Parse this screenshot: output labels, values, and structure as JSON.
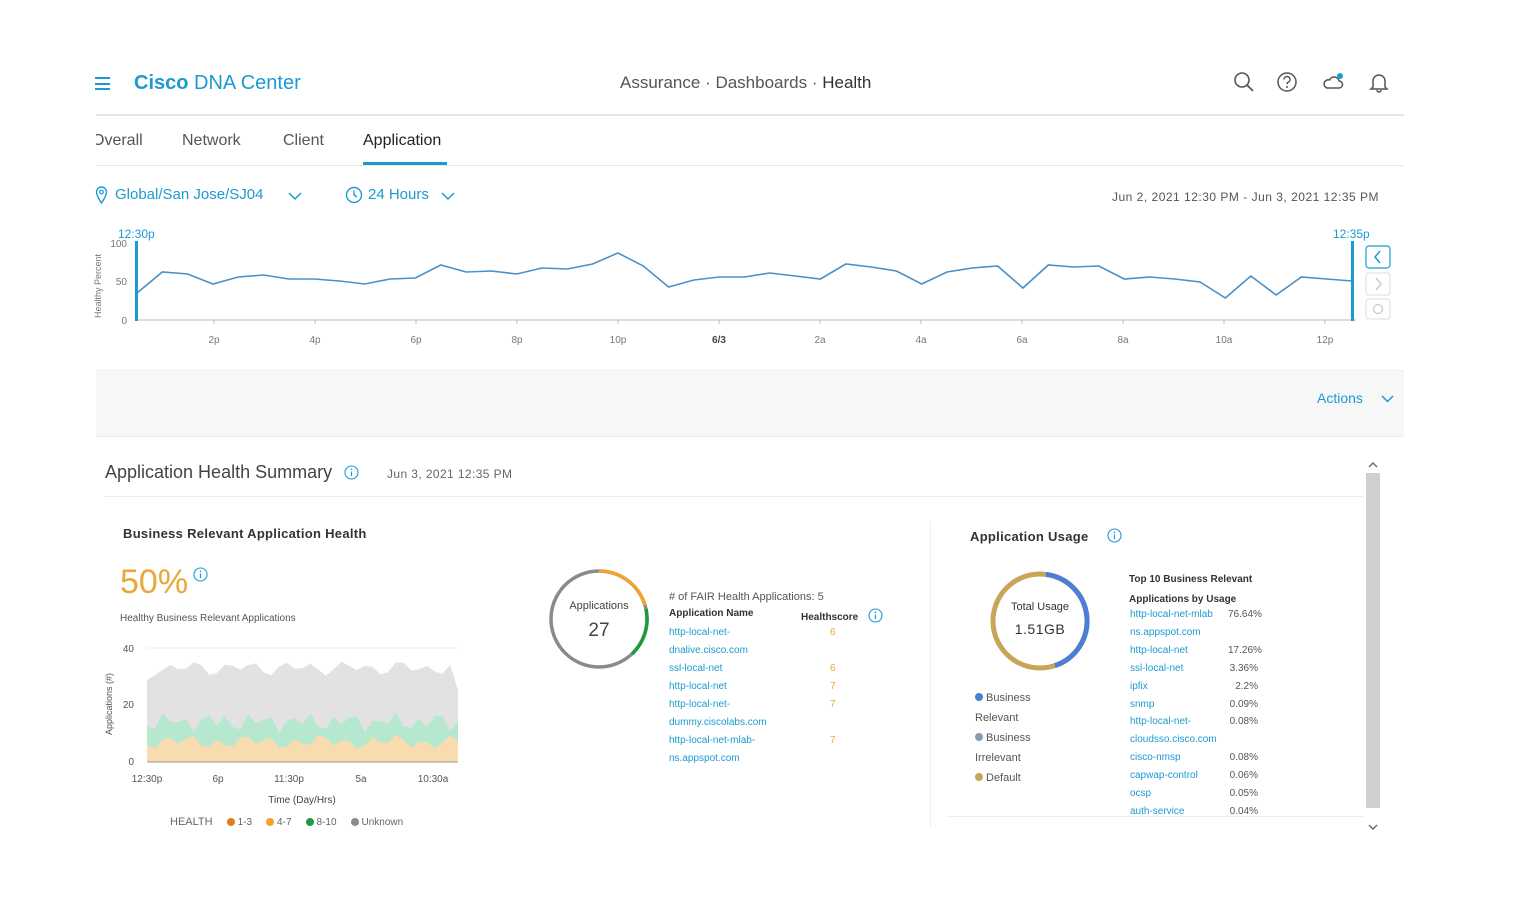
{
  "header": {
    "brand_bold": "Cisco",
    "brand_rest": "DNA Center",
    "breadcrumb": [
      "Assurance",
      "Dashboards",
      "Health"
    ],
    "icons": [
      "search-icon",
      "help-icon",
      "cloud-notification-icon",
      "bell-icon"
    ]
  },
  "tabs": [
    {
      "label": "Overall"
    },
    {
      "label": "Network"
    },
    {
      "label": "Client"
    },
    {
      "label": "Application",
      "active": true
    }
  ],
  "filters": {
    "location": "Global/San Jose/SJ04",
    "time_range": "24 Hours",
    "date_range": "Jun 2, 2021 12:30 PM - Jun 3, 2021 12:35 PM"
  },
  "timeline": {
    "start_label": "12:30p",
    "end_label": "12:35p",
    "ylabel": "Healthy Percent",
    "yticks": [
      "100",
      "50",
      "0"
    ],
    "xticks": [
      "2p",
      "4p",
      "6p",
      "8p",
      "10p",
      "6/3",
      "2a",
      "4a",
      "6a",
      "8a",
      "10a",
      "12p"
    ]
  },
  "actions": {
    "label": "Actions"
  },
  "summary": {
    "title": "Application Health Summary",
    "date": "Jun 3, 2021 12:35 PM"
  },
  "business_health": {
    "title": "Business Relevant Application Health",
    "percent": "50%",
    "subtitle": "Healthy Business Relevant Applications",
    "chart": {
      "ylabel": "Applications (#)",
      "xlabel": "Time (Day/Hrs)",
      "yticks": [
        "40",
        "20",
        "0"
      ],
      "xticks": [
        "12:30p",
        "6p",
        "11:30p",
        "5a",
        "10:30a"
      ]
    },
    "legend": {
      "title": "HEALTH",
      "items": [
        {
          "label": "1-3",
          "color": "#e07b22"
        },
        {
          "label": "4-7",
          "color": "#f2a22d"
        },
        {
          "label": "8-10",
          "color": "#1a9c3e"
        },
        {
          "label": "Unknown",
          "color": "#8c8c8c"
        }
      ]
    }
  },
  "applications": {
    "donut_label": "Applications",
    "donut_count": "27",
    "fair_label": "# of FAIR Health Applications: 5",
    "col_name": "Application Name",
    "col_score": "Healthscore",
    "rows": [
      {
        "name1": "http-local-net-",
        "name2": "dnalive.cisco.com",
        "score": "6"
      },
      {
        "name1": "ssl-local-net",
        "name2": "",
        "score": "6"
      },
      {
        "name1": "http-local-net",
        "name2": "",
        "score": "7"
      },
      {
        "name1": "http-local-net-",
        "name2": "dummy.ciscolabs.com",
        "score": "7"
      },
      {
        "name1": "http-local-net-mlab-",
        "name2": "ns.appspot.com",
        "score": "7"
      }
    ]
  },
  "usage": {
    "title": "Application Usage",
    "total_label": "Total Usage",
    "total_value": "1.51GB",
    "legend": [
      {
        "line1": "Business",
        "line2": "Relevant",
        "color": "#4a7fd4"
      },
      {
        "line1": "Business",
        "line2": "Irrelevant",
        "color": "#8a9bb0"
      },
      {
        "line1": "Default",
        "line2": "",
        "color": "#c9a55a"
      }
    ],
    "top_title1": "Top 10 Business Relevant",
    "top_title2": "Applications by Usage",
    "rows": [
      {
        "name": "http-local-net-mlab",
        "pct": "76.64%"
      },
      {
        "name": "ns.appspot.com",
        "pct": ""
      },
      {
        "name": "http-local-net",
        "pct": "17.26%"
      },
      {
        "name": "ssl-local-net",
        "pct": "3.36%"
      },
      {
        "name": "ipfix",
        "pct": "2.2%"
      },
      {
        "name": "snmp",
        "pct": "0.09%"
      },
      {
        "name": "http-local-net-",
        "pct": "0.08%"
      },
      {
        "name": "cloudsso.cisco.com",
        "pct": ""
      },
      {
        "name": "cisco-nmsp",
        "pct": "0.08%"
      },
      {
        "name": "capwap-control",
        "pct": "0.06%"
      },
      {
        "name": "ocsp",
        "pct": "0.05%"
      },
      {
        "name": "auth-service",
        "pct": "0.04%"
      }
    ]
  }
}
